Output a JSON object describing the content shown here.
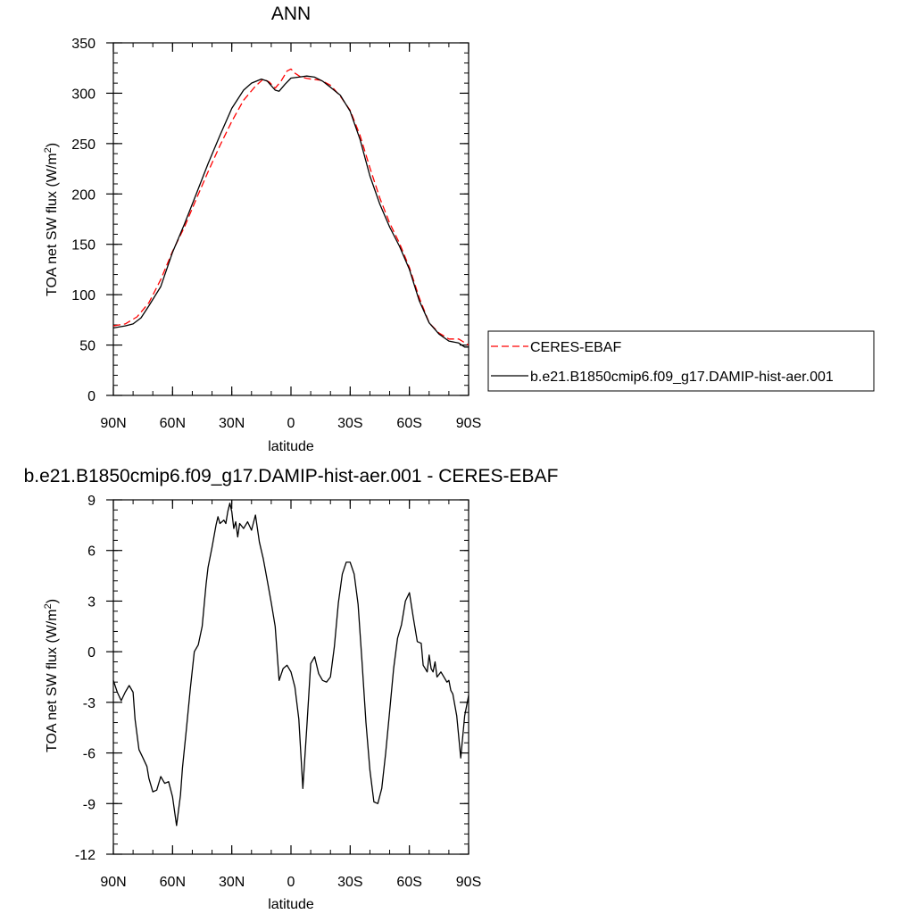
{
  "chart_data": [
    {
      "type": "line",
      "title": "ANN",
      "xlabel": "latitude",
      "ylabel": "TOA net SW flux (W/m",
      "ylabel_sup": "2",
      "ylabel_close": ")",
      "xlim": [
        90,
        -90
      ],
      "ylim": [
        0,
        350
      ],
      "xticks": [
        90,
        60,
        30,
        0,
        -30,
        -60,
        -90
      ],
      "xtick_labels": [
        "90N",
        "60N",
        "30N",
        "0",
        "30S",
        "60S",
        "90S"
      ],
      "yticks": [
        0,
        50,
        100,
        150,
        200,
        250,
        300,
        350
      ],
      "ytick_labels": [
        "0",
        "50",
        "100",
        "150",
        "200",
        "250",
        "300",
        "350"
      ],
      "legend_position": "right",
      "series": [
        {
          "name": "CERES-EBAF",
          "color": "#ff0000",
          "dash": "dashed",
          "x": [
            90,
            84,
            78,
            72,
            66,
            60,
            54,
            48,
            42,
            36,
            30,
            24,
            18,
            14,
            11,
            8,
            5,
            2,
            0,
            -2,
            -5,
            -10,
            -15,
            -20,
            -25,
            -30,
            -35,
            -40,
            -45,
            -50,
            -55,
            -60,
            -65,
            -70,
            -75,
            -80,
            -85,
            -90
          ],
          "y": [
            69,
            71,
            78,
            92,
            115,
            143,
            167,
            195,
            222,
            248,
            272,
            293,
            307,
            314,
            311,
            305,
            312,
            322,
            324,
            320,
            316,
            314,
            313,
            308,
            297,
            283,
            258,
            226,
            196,
            171,
            151,
            127,
            97,
            72,
            62,
            56,
            56,
            50
          ]
        },
        {
          "name": "b.e21.B1850cmip6.f09_g17.DAMIP-hist-aer.001",
          "color": "#000000",
          "dash": "solid",
          "x": [
            90,
            84,
            80,
            76,
            72,
            66,
            60,
            54,
            48,
            42,
            36,
            30,
            24,
            20,
            15,
            12,
            8,
            6,
            3,
            0,
            -4,
            -8,
            -12,
            -16,
            -20,
            -25,
            -30,
            -35,
            -40,
            -45,
            -50,
            -55,
            -60,
            -65,
            -70,
            -75,
            -80,
            -85,
            -88,
            -90
          ],
          "y": [
            67,
            69,
            71,
            77,
            89,
            108,
            142,
            170,
            200,
            230,
            258,
            285,
            303,
            310,
            314,
            312,
            303,
            302,
            309,
            315,
            316,
            317,
            316,
            312,
            306,
            298,
            282,
            254,
            218,
            190,
            167,
            148,
            125,
            94,
            72,
            61,
            54,
            52,
            48,
            48
          ]
        }
      ]
    },
    {
      "type": "line",
      "title": "b.e21.B1850cmip6.f09_g17.DAMIP-hist-aer.001 - CERES-EBAF",
      "xlabel": "latitude",
      "ylabel": "TOA net SW flux (W/m",
      "ylabel_sup": "2",
      "ylabel_close": ")",
      "xlim": [
        90,
        -90
      ],
      "ylim": [
        -12,
        9
      ],
      "xticks": [
        90,
        60,
        30,
        0,
        -30,
        -60,
        -90
      ],
      "xtick_labels": [
        "90N",
        "60N",
        "30N",
        "0",
        "30S",
        "60S",
        "90S"
      ],
      "yticks": [
        -12,
        -9,
        -6,
        -3,
        0,
        3,
        6,
        9
      ],
      "ytick_labels": [
        "-12",
        "-9",
        "-6",
        "-3",
        "0",
        "3",
        "6",
        "9"
      ],
      "series": [
        {
          "color": "#000000",
          "dash": "solid",
          "x": [
            90,
            88,
            86,
            84,
            82,
            80,
            79,
            77,
            75,
            73,
            72,
            70,
            68,
            66,
            65,
            64,
            62,
            60,
            58,
            56,
            55,
            53,
            51,
            49,
            47,
            45,
            43,
            42,
            40,
            38,
            37,
            36,
            34,
            33,
            32,
            31,
            30,
            29,
            28,
            27,
            26,
            24,
            22,
            20,
            18,
            16,
            14,
            12,
            10,
            8,
            6,
            4,
            2,
            0,
            -2,
            -4,
            -6,
            -8,
            -10,
            -12,
            -14,
            -16,
            -18,
            -20,
            -22,
            -24,
            -26,
            -28,
            -30,
            -32,
            -34,
            -36,
            -38,
            -40,
            -42,
            -44,
            -46,
            -48,
            -50,
            -52,
            -54,
            -56,
            -58,
            -60,
            -62,
            -64,
            -66,
            -67,
            -68,
            -69,
            -70,
            -71,
            -72,
            -73,
            -74,
            -76,
            -78,
            -79,
            -80,
            -81,
            -82,
            -84,
            -86,
            -88,
            -90
          ],
          "y": [
            -1.7,
            -2.4,
            -2.9,
            -2.4,
            -2.0,
            -2.4,
            -4.0,
            -5.8,
            -6.3,
            -6.8,
            -7.5,
            -8.3,
            -8.2,
            -7.4,
            -7.6,
            -7.8,
            -7.7,
            -8.6,
            -10.3,
            -8.5,
            -6.9,
            -4.6,
            -2.2,
            0.0,
            0.4,
            1.5,
            4.0,
            5.0,
            6.2,
            7.5,
            8.0,
            7.6,
            7.8,
            7.6,
            8.3,
            8.8,
            8.3,
            7.3,
            7.7,
            6.8,
            7.6,
            7.3,
            7.7,
            7.2,
            8.1,
            6.5,
            5.5,
            4.2,
            2.9,
            1.5,
            -1.7,
            -1.0,
            -0.8,
            -1.2,
            -2.1,
            -4.0,
            -8.1,
            -4.5,
            -0.7,
            -0.3,
            -1.3,
            -1.7,
            -1.8,
            -1.5,
            0.3,
            2.9,
            4.6,
            5.3,
            5.3,
            4.6,
            2.8,
            -0.6,
            -4.2,
            -7.0,
            -8.9,
            -9.0,
            -8.1,
            -6.0,
            -3.5,
            -1.0,
            0.8,
            1.6,
            3.0,
            3.5,
            2.0,
            0.6,
            0.5,
            -0.8,
            -1.0,
            -1.2,
            -0.2,
            -1.0,
            -1.2,
            -0.6,
            -1.5,
            -1.2,
            -1.6,
            -1.8,
            -1.7,
            -2.3,
            -2.5,
            -3.8,
            -6.3,
            -3.8,
            -2.6
          ]
        }
      ]
    }
  ]
}
